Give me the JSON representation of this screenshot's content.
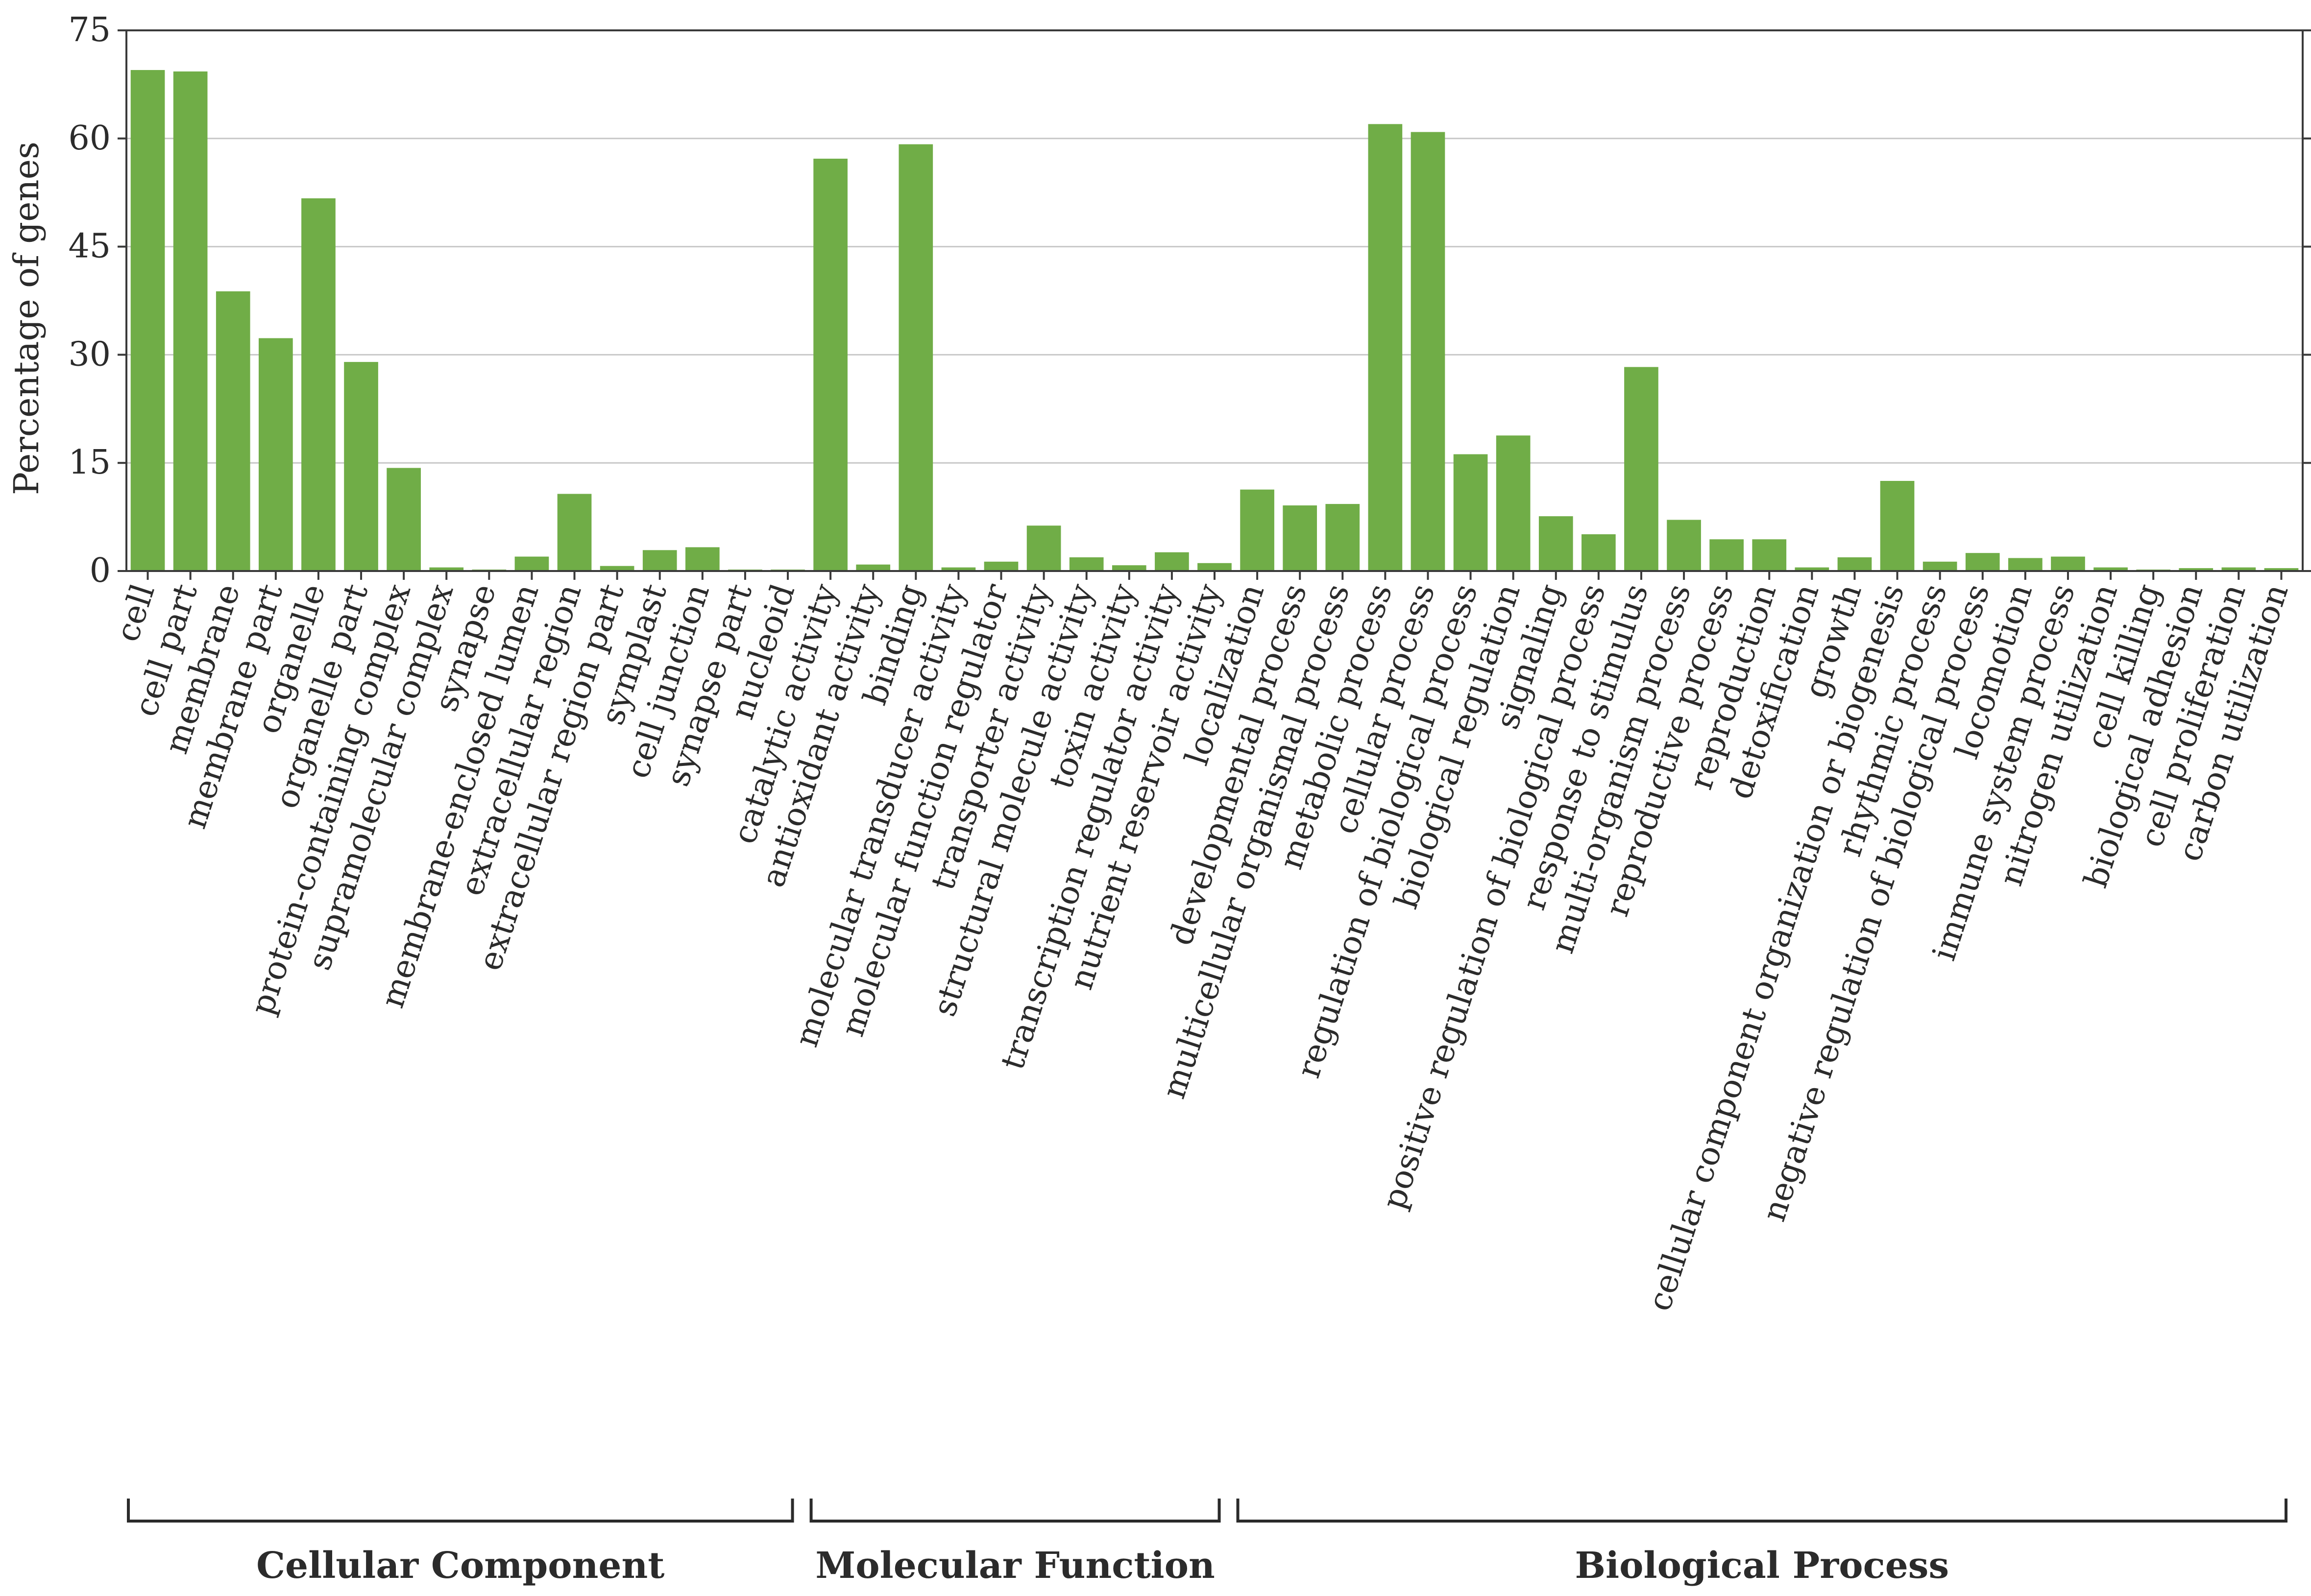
{
  "chart_data": {
    "type": "bar",
    "title": "",
    "xlabel": "",
    "ylabel": "Percentage of genes",
    "ylim": [
      0,
      75
    ],
    "yticks": [
      0,
      15,
      30,
      45,
      60,
      75
    ],
    "grid": true,
    "bar_color": "#70ad47",
    "categories": [
      "cell",
      "cell part",
      "membrane",
      "membrane part",
      "organelle",
      "organelle part",
      "protein-containing complex",
      "supramolecular complex",
      "synapse",
      "membrane-enclosed lumen",
      "extracellular region",
      "extracellular region part",
      "symplast",
      "cell junction",
      "synapse part",
      "nucleoid",
      "catalytic activity",
      "antioxidant activity",
      "binding",
      "molecular transducer activity",
      "molecular function regulator",
      "transporter activity",
      "structural molecule activity",
      "toxin activity",
      "transcription regulator activity",
      "nutrient reservoir activity",
      "localization",
      "developmental process",
      "multicellular organismal process",
      "metabolic process",
      "cellular process",
      "regulation of biological process",
      "biological regulation",
      "signaling",
      "positive regulation of biological process",
      "response to stimulus",
      "multi-organism process",
      "reproductive process",
      "reproduction",
      "detoxification",
      "growth",
      "cellular component organization or biogenesis",
      "rhythmic process",
      "negative regulation of biological process",
      "locomotion",
      "immune system process",
      "nitrogen utilization",
      "cell killing",
      "biological adhesion",
      "cell proliferation",
      "carbon utilization"
    ],
    "values": [
      69.5,
      69.3,
      38.8,
      32.3,
      51.7,
      29.0,
      14.3,
      0.5,
      0.2,
      2.0,
      10.7,
      0.7,
      2.9,
      3.3,
      0.2,
      0.2,
      57.2,
      0.9,
      59.2,
      0.5,
      1.3,
      6.3,
      1.9,
      0.8,
      2.6,
      1.1,
      11.3,
      9.1,
      9.3,
      62.0,
      60.9,
      16.2,
      18.8,
      7.6,
      5.1,
      28.3,
      7.1,
      4.4,
      4.4,
      0.5,
      1.9,
      12.5,
      1.3,
      2.5,
      1.8,
      2.0,
      0.5,
      0.2,
      0.4,
      0.5,
      0.4
    ],
    "groups": [
      {
        "name": "Cellular Component",
        "start": 0,
        "end": 15
      },
      {
        "name": "Molecular Function",
        "start": 16,
        "end": 25
      },
      {
        "name": "Biological Process",
        "start": 26,
        "end": 50
      }
    ]
  }
}
